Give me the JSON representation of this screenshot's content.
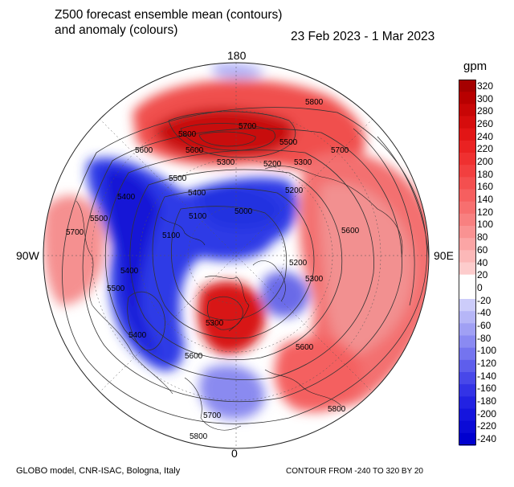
{
  "header": {
    "title_line1": "Z500 forecast ensemble mean (contours)",
    "title_line2": "and anomaly (colours)",
    "period": "23 Feb 2023 - 1 Mar 2023"
  },
  "map": {
    "projection": "north-polar-stereographic",
    "longitude_labels": {
      "top": "180",
      "bottom": "0",
      "left": "90W",
      "right": "90E"
    },
    "contour_labels": [
      "5800",
      "5700",
      "5600",
      "5500",
      "5400",
      "5300",
      "5200",
      "5100",
      "5000",
      "5600",
      "5800",
      "5700",
      "5500",
      "5400",
      "5300",
      "5200",
      "5100",
      "5700",
      "5600",
      "5500",
      "5400",
      "5300",
      "5200",
      "5600",
      "5500",
      "5400",
      "5300",
      "5600",
      "5700",
      "5800",
      "5800"
    ],
    "anomaly_colors": {
      "positive": "#e8191c",
      "negative": "#1e2ee0",
      "neutral": "#ffffff"
    }
  },
  "colorbar": {
    "unit": "gpm",
    "labels": [
      "320",
      "300",
      "280",
      "260",
      "240",
      "220",
      "200",
      "180",
      "160",
      "140",
      "120",
      "100",
      "80",
      "60",
      "40",
      "20",
      "0",
      "-20",
      "-40",
      "-60",
      "-80",
      "-100",
      "-120",
      "-140",
      "-160",
      "-180",
      "-200",
      "-220",
      "-240"
    ],
    "colors": [
      "#a50000",
      "#b80000",
      "#c80606",
      "#d60d0d",
      "#e21515",
      "#ea2222",
      "#ef3030",
      "#f23f3f",
      "#f44f4f",
      "#f65f5f",
      "#f76f6f",
      "#f88080",
      "#f99292",
      "#fba5a5",
      "#fcb8b8",
      "#fdcccc",
      "#ffffff",
      "#ffffff",
      "#ccccfa",
      "#b6b6f7",
      "#a0a0f4",
      "#8a8af2",
      "#7474ef",
      "#5e5eec",
      "#4848e9",
      "#3333e6",
      "#2222e2",
      "#1515dd",
      "#0b0bd6",
      "#0000cf"
    ]
  },
  "footer": {
    "source": "GLOBO model, CNR-ISAC, Bologna, Italy",
    "contour_info": "CONTOUR FROM -240 TO 320 BY 20"
  }
}
